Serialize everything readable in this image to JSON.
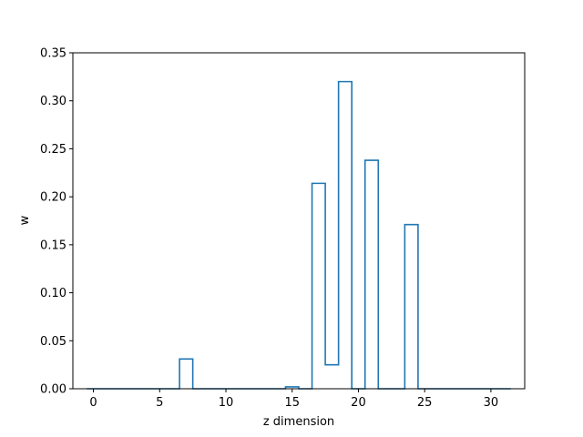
{
  "chart_data": {
    "type": "bar",
    "style": "step-outline",
    "title": "",
    "xlabel": "z dimension",
    "ylabel": "w",
    "x": [
      0,
      1,
      2,
      3,
      4,
      5,
      6,
      7,
      8,
      9,
      10,
      11,
      12,
      13,
      14,
      15,
      16,
      17,
      18,
      19,
      20,
      21,
      22,
      23,
      24,
      25,
      26,
      27,
      28,
      29,
      30,
      31
    ],
    "values": [
      0,
      0,
      0,
      0,
      0,
      0,
      0,
      0.031,
      0,
      0,
      0,
      0,
      0,
      0,
      0,
      0.002,
      0,
      0.214,
      0.025,
      0.32,
      0,
      0.238,
      0,
      0,
      0.171,
      0,
      0,
      0,
      0,
      0,
      0,
      0
    ],
    "xlim": [
      -1.55,
      32.55
    ],
    "ylim": [
      0,
      0.35
    ],
    "xticks": [
      0,
      5,
      10,
      15,
      20,
      25,
      30
    ],
    "yticks": [
      "0.00",
      "0.05",
      "0.10",
      "0.15",
      "0.20",
      "0.25",
      "0.30",
      "0.35"
    ],
    "grid": false,
    "legend": "none",
    "color": "#1f77b4"
  }
}
